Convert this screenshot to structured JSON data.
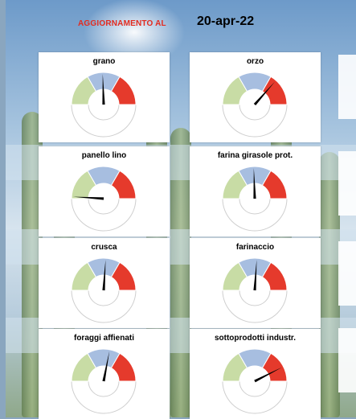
{
  "header": {
    "title": "AGGIORNAMENTO AL",
    "date": "20-apr-22"
  },
  "colors": {
    "low": "#c8dca5",
    "mid": "#a7bee0",
    "high": "#e53a2c",
    "needle": "#000000",
    "title_red": "#e32b1f"
  },
  "gauges": [
    {
      "label": "grano",
      "needle_fraction": 0.49
    },
    {
      "label": "orzo",
      "needle_fraction": 0.73
    },
    {
      "label": "panello lino",
      "needle_fraction": 0.02
    },
    {
      "label": "farina girasole prot.",
      "needle_fraction": 0.49
    },
    {
      "label": "crusca",
      "needle_fraction": 0.52
    },
    {
      "label": "farinaccio",
      "needle_fraction": 0.52
    },
    {
      "label": "foraggi affienati",
      "needle_fraction": 0.56
    },
    {
      "label": "sottoprodotti industr.",
      "needle_fraction": 0.85
    }
  ]
}
